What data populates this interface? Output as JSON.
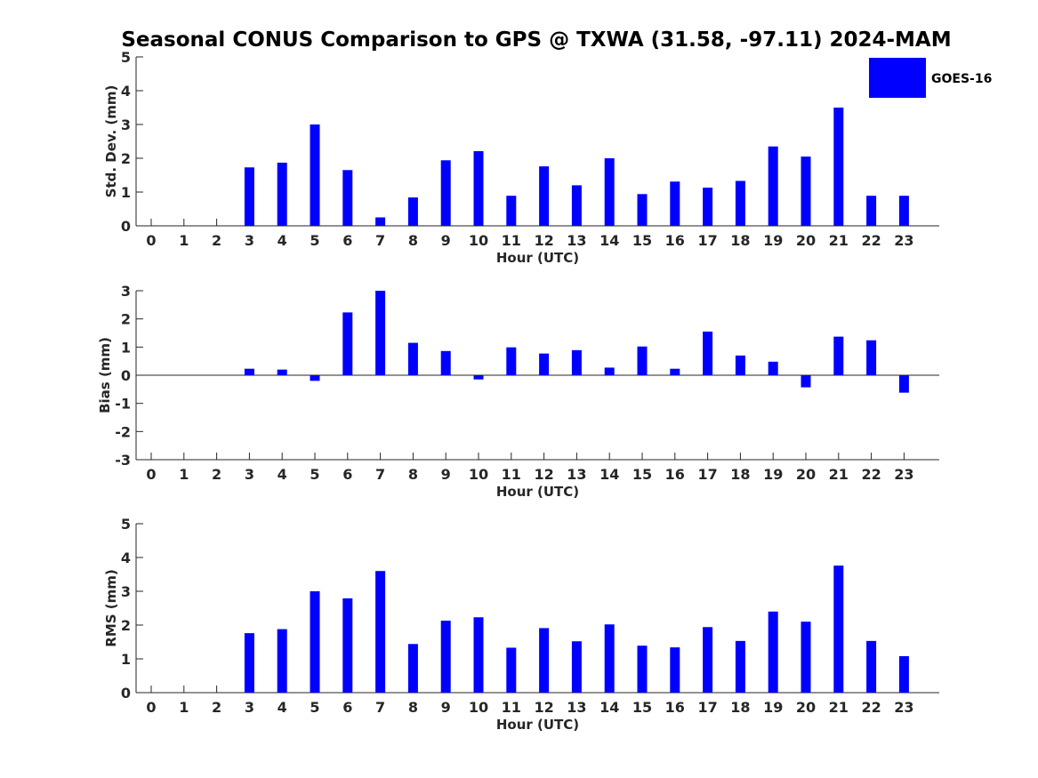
{
  "title": "Seasonal CONUS Comparison to GPS @ TXWA (31.58, -97.11) 2024-MAM",
  "legend": {
    "label": "GOES-16",
    "color": "#0000ff"
  },
  "chart_data": [
    {
      "type": "bar",
      "name": "std",
      "xlabel": "Hour (UTC)",
      "ylabel": "Std. Dev. (mm)",
      "ylim": [
        0,
        5
      ],
      "yticks": [
        0,
        1,
        2,
        3,
        4,
        5
      ],
      "categories": [
        "0",
        "1",
        "2",
        "3",
        "4",
        "5",
        "6",
        "7",
        "8",
        "9",
        "10",
        "11",
        "12",
        "13",
        "14",
        "15",
        "16",
        "17",
        "18",
        "19",
        "20",
        "21",
        "22",
        "23"
      ],
      "series": [
        {
          "name": "GOES-16",
          "values": [
            0,
            0,
            0,
            1.73,
            1.87,
            3.0,
            1.65,
            0.25,
            0.84,
            1.94,
            2.21,
            0.89,
            1.76,
            1.2,
            2.0,
            0.94,
            1.31,
            1.13,
            1.33,
            2.35,
            2.05,
            3.5,
            0.89,
            0.89
          ]
        }
      ],
      "grid": false
    },
    {
      "type": "bar",
      "name": "bias",
      "xlabel": "Hour (UTC)",
      "ylabel": "Bias (mm)",
      "ylim": [
        -3,
        3
      ],
      "yticks": [
        -3,
        -2,
        -1,
        0,
        1,
        2,
        3
      ],
      "categories": [
        "0",
        "1",
        "2",
        "3",
        "4",
        "5",
        "6",
        "7",
        "8",
        "9",
        "10",
        "11",
        "12",
        "13",
        "14",
        "15",
        "16",
        "17",
        "18",
        "19",
        "20",
        "21",
        "22",
        "23"
      ],
      "series": [
        {
          "name": "GOES-16",
          "values": [
            0,
            0,
            0,
            0.23,
            0.2,
            -0.2,
            2.23,
            3.0,
            1.15,
            0.86,
            -0.15,
            0.99,
            0.77,
            0.89,
            0.27,
            1.02,
            0.23,
            1.55,
            0.7,
            0.48,
            -0.43,
            1.37,
            1.24,
            -0.62
          ]
        }
      ],
      "grid": false
    },
    {
      "type": "bar",
      "name": "rms",
      "xlabel": "Hour (UTC)",
      "ylabel": "RMS (mm)",
      "ylim": [
        0,
        5
      ],
      "yticks": [
        0,
        1,
        2,
        3,
        4,
        5
      ],
      "categories": [
        "0",
        "1",
        "2",
        "3",
        "4",
        "5",
        "6",
        "7",
        "8",
        "9",
        "10",
        "11",
        "12",
        "13",
        "14",
        "15",
        "16",
        "17",
        "18",
        "19",
        "20",
        "21",
        "22",
        "23"
      ],
      "series": [
        {
          "name": "GOES-16",
          "values": [
            0,
            0,
            0,
            1.76,
            1.88,
            3.0,
            2.79,
            3.6,
            1.44,
            2.13,
            2.23,
            1.33,
            1.91,
            1.52,
            2.02,
            1.39,
            1.34,
            1.94,
            1.53,
            2.4,
            2.1,
            3.76,
            1.53,
            1.08
          ]
        }
      ],
      "grid": false
    }
  ]
}
